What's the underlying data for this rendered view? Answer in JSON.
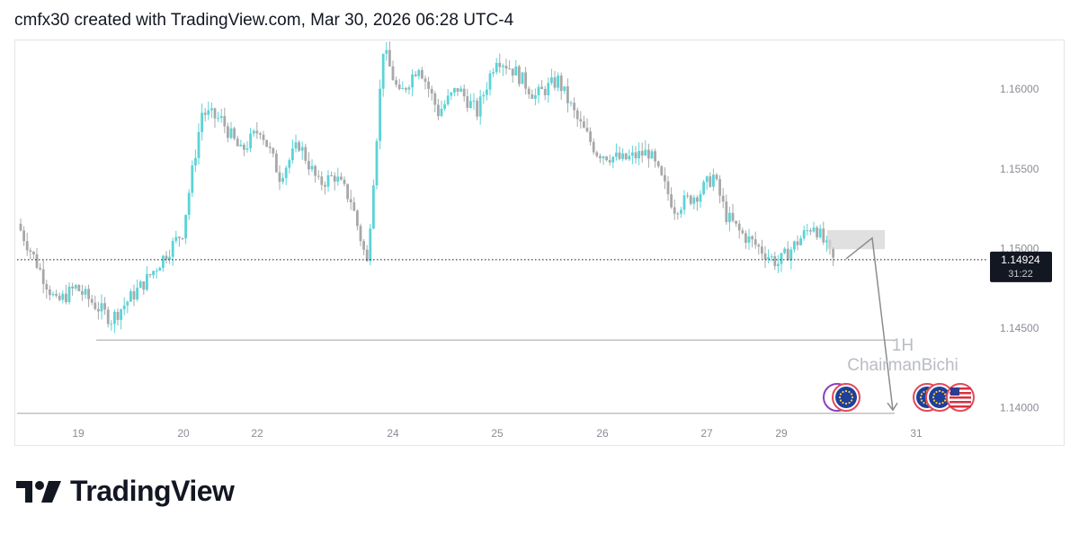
{
  "header": {
    "credit": "cmfx30 created with TradingView.com, Mar 30, 2026 06:28 UTC-4"
  },
  "brand": {
    "logo_icon": "tradingview-logo-icon",
    "name": "TradingView"
  },
  "chart_data": {
    "type": "candlestick",
    "title": "",
    "xlabel": "",
    "ylabel": "",
    "ylim": [
      1.1375,
      1.163
    ],
    "y_ticks": [
      "1.16000",
      "1.15500",
      "1.15000",
      "1.14500",
      "1.14000"
    ],
    "x_ticks": [
      "19",
      "20",
      "22",
      "24",
      "25",
      "26",
      "27",
      "29",
      "31"
    ],
    "grid": false,
    "colors": {
      "up": "#5cd3d6",
      "down": "#a8a8a8",
      "line": "#b5b5b5",
      "tag_bg": "#131722",
      "tag_text": "#ffffff"
    },
    "current_price": {
      "label": "1.14924",
      "value": 1.14924,
      "countdown": "31:22"
    },
    "horizontal_levels": [
      1.1442,
      1.1396
    ],
    "zone": {
      "low": 1.1499,
      "high": 1.1511
    },
    "projection_path": [
      {
        "x": "29",
        "y": 1.1493
      },
      {
        "x": "29",
        "y": 1.1506
      },
      {
        "x": "31",
        "y": 1.1398
      }
    ],
    "watermark": {
      "interval": "1H",
      "author": "ChairmanBichi"
    },
    "event_icons": [
      "eu-flag-icon",
      "eu-flag-icon",
      "eu-flag-icon",
      "eu-flag-icon",
      "us-flag-icon"
    ],
    "price_path": [
      {
        "x": "18",
        "y": 1.1515
      },
      {
        "x": "18",
        "y": 1.149
      },
      {
        "x": "18",
        "y": 1.1465
      },
      {
        "x": "19",
        "y": 1.1475
      },
      {
        "x": "19",
        "y": 1.1455
      },
      {
        "x": "19",
        "y": 1.148
      },
      {
        "x": "20",
        "y": 1.151
      },
      {
        "x": "20",
        "y": 1.1585
      },
      {
        "x": "20",
        "y": 1.158
      },
      {
        "x": "20",
        "y": 1.156
      },
      {
        "x": "22",
        "y": 1.1575
      },
      {
        "x": "22",
        "y": 1.1545
      },
      {
        "x": "22",
        "y": 1.1565
      },
      {
        "x": "23",
        "y": 1.154
      },
      {
        "x": "23",
        "y": 1.1545
      },
      {
        "x": "23",
        "y": 1.153
      },
      {
        "x": "23",
        "y": 1.149
      },
      {
        "x": "23",
        "y": 1.1625
      },
      {
        "x": "24",
        "y": 1.1595
      },
      {
        "x": "24",
        "y": 1.1615
      },
      {
        "x": "24",
        "y": 1.1585
      },
      {
        "x": "24",
        "y": 1.16
      },
      {
        "x": "24",
        "y": 1.1585
      },
      {
        "x": "25",
        "y": 1.162
      },
      {
        "x": "25",
        "y": 1.161
      },
      {
        "x": "25",
        "y": 1.1595
      },
      {
        "x": "25",
        "y": 1.1605
      },
      {
        "x": "25",
        "y": 1.158
      },
      {
        "x": "26",
        "y": 1.156
      },
      {
        "x": "26",
        "y": 1.1555
      },
      {
        "x": "26",
        "y": 1.156
      },
      {
        "x": "26",
        "y": 1.1525
      },
      {
        "x": "27",
        "y": 1.1535
      },
      {
        "x": "27",
        "y": 1.1545
      },
      {
        "x": "27",
        "y": 1.152
      },
      {
        "x": "28",
        "y": 1.151
      },
      {
        "x": "29",
        "y": 1.149
      },
      {
        "x": "29",
        "y": 1.1515
      },
      {
        "x": "29",
        "y": 1.1492
      }
    ]
  }
}
